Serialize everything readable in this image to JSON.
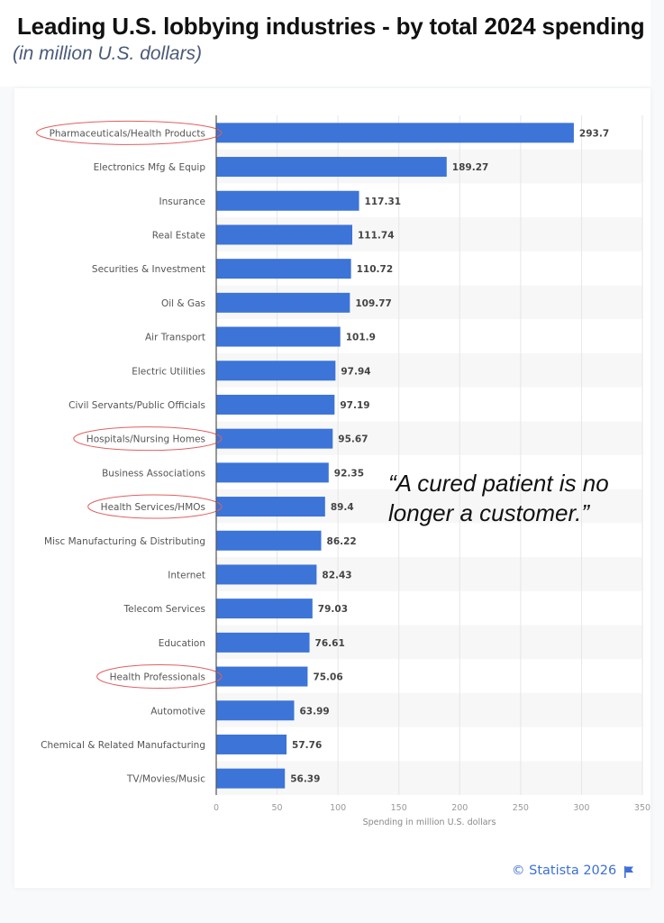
{
  "header": {
    "title": "Leading U.S. lobbying industries - by total 2024 spending",
    "subtitle": "(in million U.S. dollars)"
  },
  "annotation": {
    "quote_line1": "“A cured patient is no",
    "quote_line2": "longer a customer.”",
    "highlight_color": "#e06060"
  },
  "footer": {
    "credit": "© Statista 2026",
    "flag_icon": "flag-icon"
  },
  "colors": {
    "bar": "#3c74d8",
    "stripe": "#f7f7f7",
    "credit": "#3d6fd6"
  },
  "chart_data": {
    "type": "bar",
    "orientation": "horizontal",
    "title": "Leading U.S. lobbying industries - by total 2024 spending",
    "subtitle": "(in million U.S. dollars)",
    "xlabel": "Spending in million U.S. dollars",
    "ylabel": "",
    "xlim": [
      0,
      350
    ],
    "xticks": [
      "0",
      "50",
      "100",
      "150",
      "200",
      "250",
      "300",
      "350"
    ],
    "grid": true,
    "categories": [
      "Pharmaceuticals/Health Products",
      "Electronics Mfg & Equip",
      "Insurance",
      "Real Estate",
      "Securities & Investment",
      "Oil & Gas",
      "Air Transport",
      "Electric Utilities",
      "Civil Servants/Public Officials",
      "Hospitals/Nursing Homes",
      "Business Associations",
      "Health Services/HMOs",
      "Misc Manufacturing & Distributing",
      "Internet",
      "Telecom Services",
      "Education",
      "Health Professionals",
      "Automotive",
      "Chemical & Related Manufacturing",
      "TV/Movies/Music"
    ],
    "values": [
      293.7,
      189.27,
      117.31,
      111.74,
      110.72,
      109.77,
      101.9,
      97.94,
      97.19,
      95.67,
      92.35,
      89.4,
      86.22,
      82.43,
      79.03,
      76.61,
      75.06,
      63.99,
      57.76,
      56.39
    ],
    "value_labels": [
      "293.7",
      "189.27",
      "117.31",
      "111.74",
      "110.72",
      "109.77",
      "101.9",
      "97.94",
      "97.19",
      "95.67",
      "92.35",
      "89.4",
      "86.22",
      "82.43",
      "79.03",
      "76.61",
      "75.06",
      "63.99",
      "57.76",
      "56.39"
    ],
    "circled_categories": [
      "Pharmaceuticals/Health Products",
      "Hospitals/Nursing Homes",
      "Health Services/HMOs",
      "Health Professionals"
    ]
  }
}
